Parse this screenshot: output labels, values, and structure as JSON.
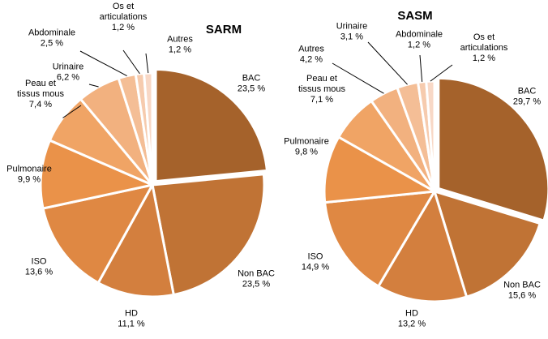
{
  "chart_data": [
    {
      "type": "pie",
      "title": "SARM",
      "slices": [
        {
          "label": [
            "BAC"
          ],
          "value": 23.5,
          "value_text": "23,5 %",
          "color": "#A5622B"
        },
        {
          "label": [
            "Non BAC"
          ],
          "value": 23.5,
          "value_text": "23,5 %",
          "color": "#C07335"
        },
        {
          "label": [
            "HD"
          ],
          "value": 11.1,
          "value_text": "11,1 %",
          "color": "#D37F3E"
        },
        {
          "label": [
            "ISO"
          ],
          "value": 13.6,
          "value_text": "13,6 %",
          "color": "#DF8843"
        },
        {
          "label": [
            "Pulmonaire"
          ],
          "value": 9.9,
          "value_text": "9,9 %",
          "color": "#EA9249"
        },
        {
          "label": [
            "Peau et",
            "tissus mous"
          ],
          "value": 7.4,
          "value_text": "7,4 %",
          "color": "#F0A465"
        },
        {
          "label": [
            "Urinaire"
          ],
          "value": 6.2,
          "value_text": "6,2 %",
          "color": "#F2B17F"
        },
        {
          "label": [
            "Abdominale"
          ],
          "value": 2.5,
          "value_text": "2,5 %",
          "color": "#F4BE96"
        },
        {
          "label": [
            "Os et",
            "articulations"
          ],
          "value": 1.2,
          "value_text": "1,2 %",
          "color": "#F6CBAE"
        },
        {
          "label": [
            "Autres"
          ],
          "value": 1.2,
          "value_text": "1,2 %",
          "color": "#F8D8C6"
        }
      ]
    },
    {
      "type": "pie",
      "title": "SASM",
      "slices": [
        {
          "label": [
            "BAC"
          ],
          "value": 29.7,
          "value_text": "29,7 %",
          "color": "#A5622B"
        },
        {
          "label": [
            "Non BAC"
          ],
          "value": 15.6,
          "value_text": "15,6 %",
          "color": "#C07335"
        },
        {
          "label": [
            "HD"
          ],
          "value": 13.2,
          "value_text": "13,2 %",
          "color": "#D37F3E"
        },
        {
          "label": [
            "ISO"
          ],
          "value": 14.9,
          "value_text": "14,9 %",
          "color": "#DF8843"
        },
        {
          "label": [
            "Pulmonaire"
          ],
          "value": 9.8,
          "value_text": "9,8 %",
          "color": "#EA9249"
        },
        {
          "label": [
            "Peau et",
            "tissus mous"
          ],
          "value": 7.1,
          "value_text": "7,1 %",
          "color": "#F0A465"
        },
        {
          "label": [
            "Autres"
          ],
          "value": 4.2,
          "value_text": "4,2 %",
          "color": "#F2B17F"
        },
        {
          "label": [
            "Urinaire"
          ],
          "value": 3.1,
          "value_text": "3,1 %",
          "color": "#F4BE96"
        },
        {
          "label": [
            "Abdominale"
          ],
          "value": 1.2,
          "value_text": "1,2 %",
          "color": "#F6CBAE"
        },
        {
          "label": [
            "Os et",
            "articulations"
          ],
          "value": 1.2,
          "value_text": "1,2 %",
          "color": "#F8D8C6"
        }
      ]
    }
  ]
}
